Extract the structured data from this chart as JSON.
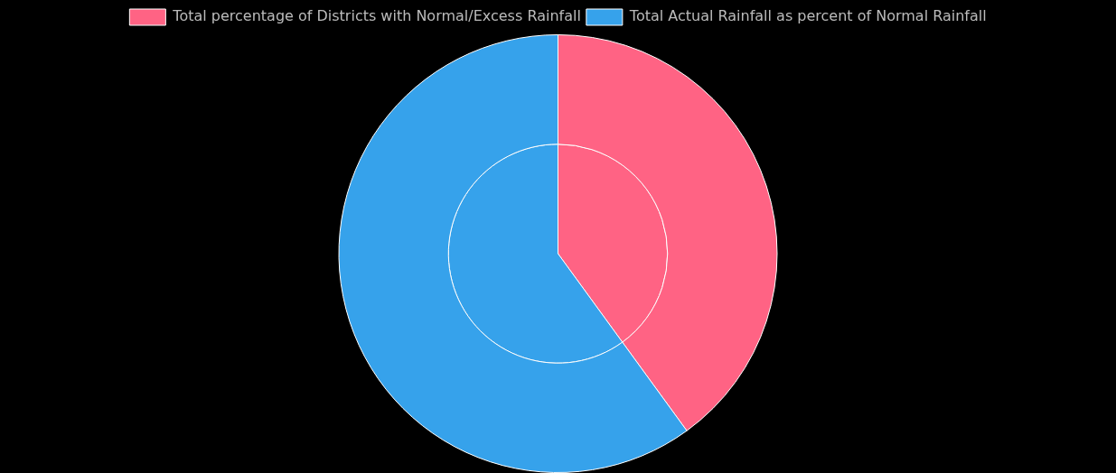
{
  "chart_data": {
    "type": "pie",
    "categories": [
      "Total percentage of Districts with Normal/Excess Rainfall",
      "Total Actual Rainfall as percent of Normal Rainfall"
    ],
    "series": [
      {
        "values": [
          40,
          60
        ],
        "colors": [
          "#ff6384",
          "#36a2eb"
        ]
      },
      {
        "values": [
          40,
          60
        ],
        "colors": [
          "#ff6384",
          "#36a2eb"
        ]
      }
    ],
    "legend": "top"
  }
}
